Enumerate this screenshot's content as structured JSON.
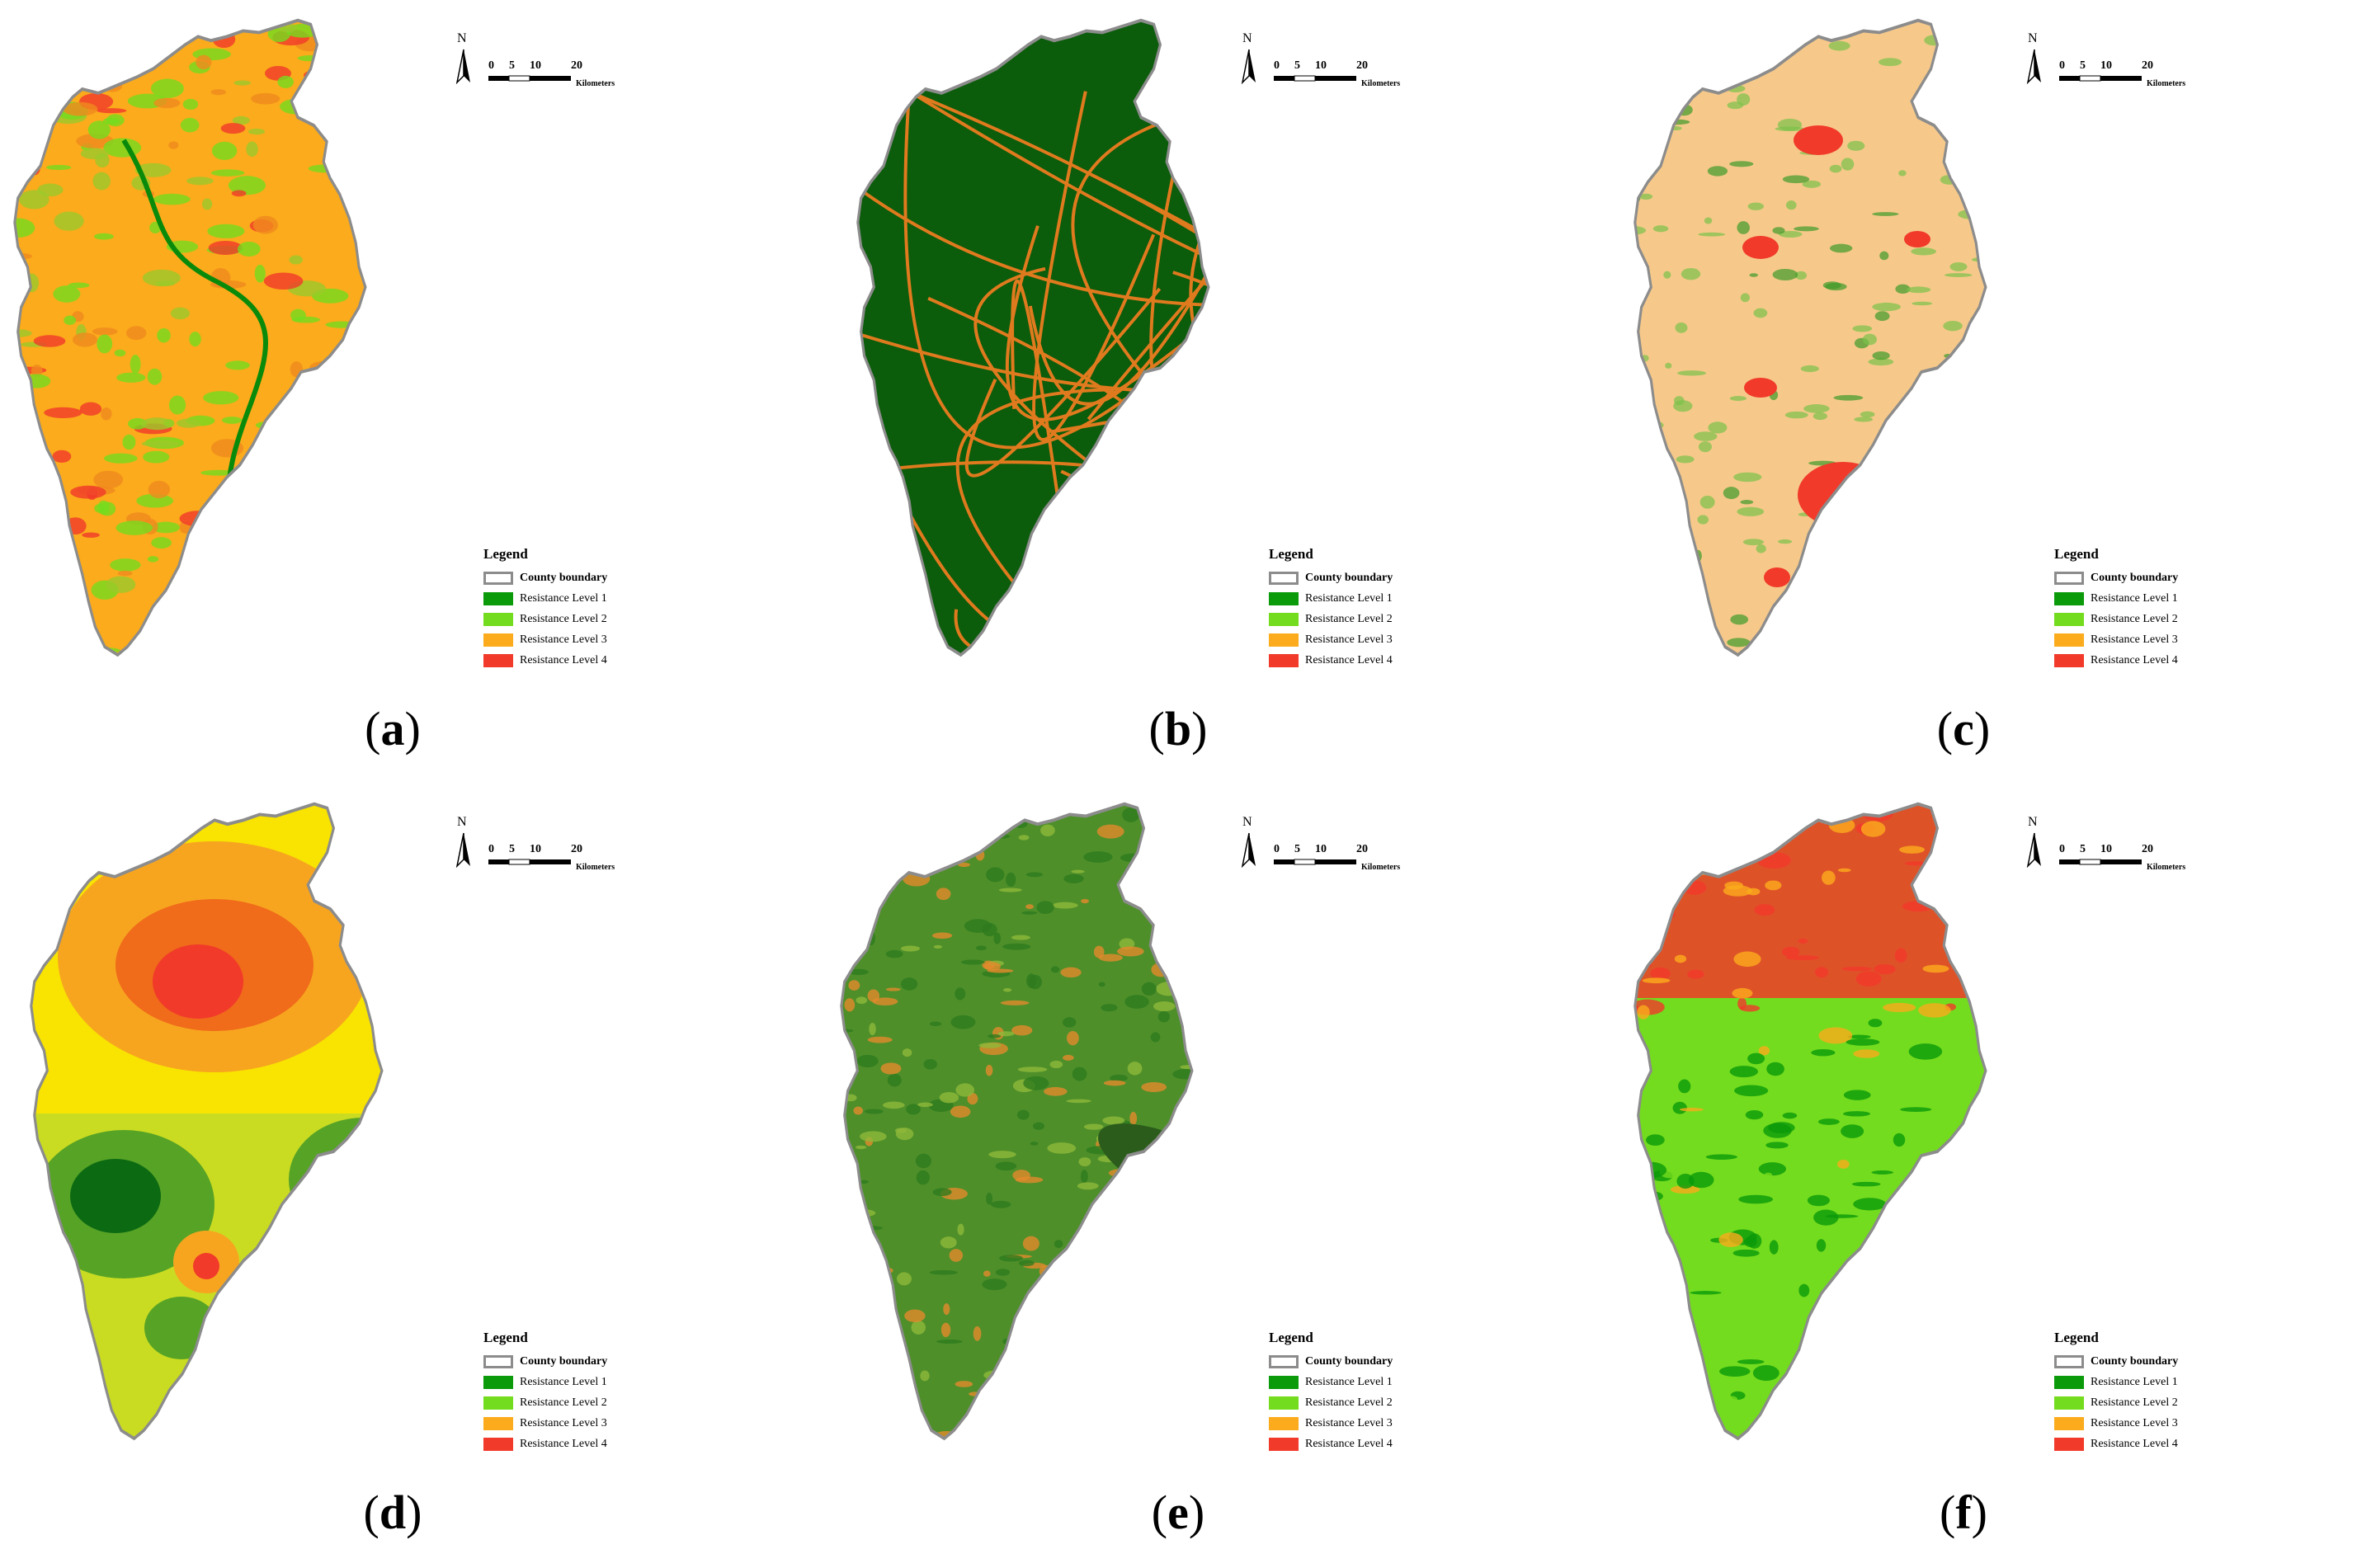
{
  "legend": {
    "title": "Legend",
    "items": [
      {
        "label": "County boundary",
        "kind": "boundary"
      },
      {
        "label": "Resistance Level 1",
        "color": "#0a9a0a"
      },
      {
        "label": "Resistance Level 2",
        "color": "#74dc1e"
      },
      {
        "label": "Resistance Level 3",
        "color": "#fbab1b"
      },
      {
        "label": "Resistance Level 4",
        "color": "#f13a2a"
      }
    ]
  },
  "scale": {
    "ticks": [
      "0",
      "5",
      "10",
      "20"
    ],
    "unit": "Kilometers"
  },
  "north": "N",
  "panels": [
    {
      "id": "a",
      "letter": "a",
      "style": "mixed-orange"
    },
    {
      "id": "b",
      "letter": "b",
      "style": "roads"
    },
    {
      "id": "c",
      "letter": "c",
      "style": "beige-landuse"
    },
    {
      "id": "d",
      "letter": "d",
      "style": "interpolated"
    },
    {
      "id": "e",
      "letter": "e",
      "style": "terrain-green"
    },
    {
      "id": "f",
      "letter": "f",
      "style": "slope-red-north"
    }
  ]
}
